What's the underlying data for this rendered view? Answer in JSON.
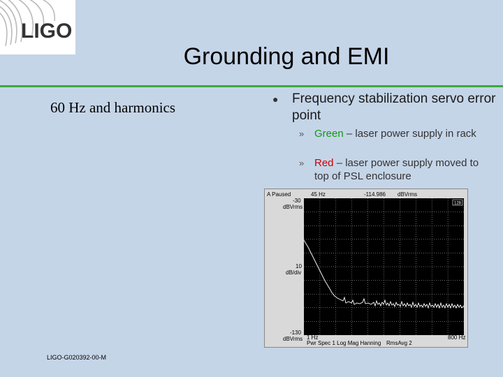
{
  "logo": {
    "text": "LIGO"
  },
  "title": "Grounding and EMI",
  "left_caption": "60 Hz and harmonics",
  "bullet": {
    "text": "Frequency stabilization servo error point"
  },
  "sub_bullets": [
    {
      "color_word": "Green",
      "rest": " – laser power supply in rack"
    },
    {
      "color_word": "Red",
      "rest": " – laser power supply moved to top of PSL enclosure"
    }
  ],
  "footer": "LIGO-G020392-00-M",
  "analyzer": {
    "status": "A Paused",
    "marker_freq": "45 Hz",
    "marker_value": "-114.986",
    "marker_unit": "dBVrms",
    "y_top": "-30",
    "y_top_unit": "dBVrms",
    "y_div": "10",
    "y_div_unit": "dB/div",
    "y_bottom": "-130",
    "y_bottom_unit": "dBVrms",
    "x_start": "1 Hz",
    "x_end": "800 Hz",
    "info_left": "Pwr Spec 1 Log Mag Hanning",
    "info_right": "RmsAvg   2",
    "badge": "128"
  },
  "colors": {
    "rule": "#3caa3c",
    "green": "#119911",
    "red": "#cc0000"
  }
}
